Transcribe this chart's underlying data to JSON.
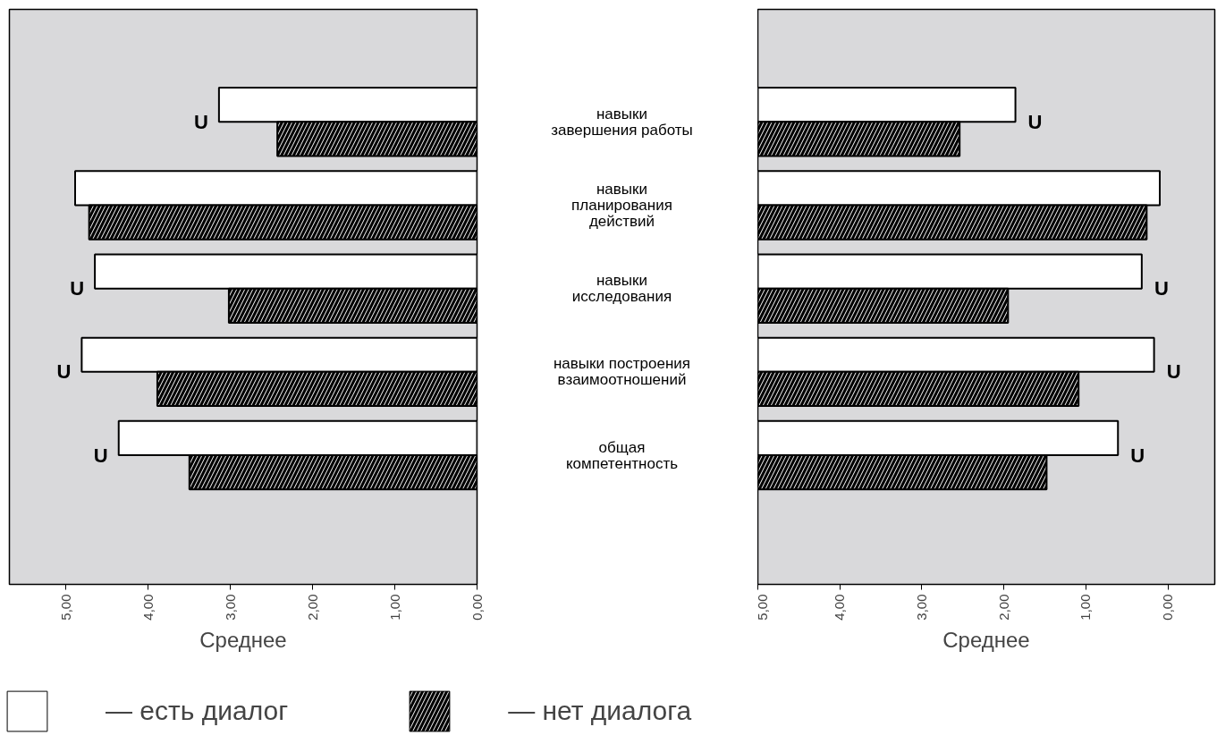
{
  "chart_data": [
    {
      "type": "bar",
      "orientation": "horizontal",
      "categories": [
        "навыки\nзавершения работы",
        "навыки\nпланирования\nдействий",
        "навыки\nисследования",
        "навыки построения\nвзаимоотношений",
        "общая\nкомпетентность"
      ],
      "xlabel": "Среднее",
      "xlim": [
        5.69,
        0
      ],
      "xticks": [
        {
          "value": 5,
          "label": "5,00"
        },
        {
          "value": 4,
          "label": "4,00"
        },
        {
          "value": 3,
          "label": "3,00"
        },
        {
          "value": 2,
          "label": "2,00"
        },
        {
          "value": 1,
          "label": "1,00"
        },
        {
          "value": 0,
          "label": "0,00"
        }
      ],
      "legend": "bottom",
      "series": [
        {
          "name": "— есть диалог",
          "color": "#ffffff",
          "values": [
            3.14,
            4.89,
            4.65,
            4.81,
            4.36
          ]
        },
        {
          "name": "— нет диалога",
          "color": "#000000",
          "values": [
            2.43,
            4.72,
            3.02,
            3.89,
            3.5
          ]
        }
      ],
      "annotations": [
        {
          "text": "U",
          "x": 3.14,
          "y": "навыки\nзавершения работы"
        },
        {
          "text": "U",
          "x": 4.65,
          "y": "навыки\nисследования"
        },
        {
          "text": "U",
          "x": 4.81,
          "y": "навыки построения\nвзаимоотношений"
        },
        {
          "text": "U",
          "x": 4.36,
          "y": "общая\nкомпетентность"
        }
      ]
    },
    {
      "type": "bar",
      "orientation": "horizontal",
      "tick_labels": "x",
      "categories": [
        "навыки\nзавершения работы",
        "навыки\nпланирования\nдействий",
        "навыки\nисследования",
        "навыки построения\nвзаимоотношений",
        "общая\nкомпетентность"
      ],
      "xlabel": "Среднее",
      "xlim": [
        5,
        -0.57
      ],
      "xticks": [
        {
          "value": 5,
          "label": "5,00"
        },
        {
          "value": 4,
          "label": "4,00"
        },
        {
          "value": 3,
          "label": "3,00"
        },
        {
          "value": 2,
          "label": "2,00"
        },
        {
          "value": 1,
          "label": "1,00"
        },
        {
          "value": 0,
          "label": "0,00"
        }
      ],
      "series": [
        {
          "color": "#ffffff",
          "base": [
            5,
            5,
            5,
            5,
            5
          ],
          "values": [
            -3.14,
            -4.9,
            -4.68,
            -4.83,
            -4.39
          ]
        },
        {
          "color": "#000000",
          "base": [
            5,
            5,
            5,
            5,
            5
          ],
          "values": [
            -2.46,
            -4.74,
            -3.05,
            -3.91,
            -3.52
          ]
        }
      ],
      "annotations": [
        {
          "text": "U",
          "x": 1.86,
          "y": "навыки\nзавершения работы"
        },
        {
          "text": "U",
          "x": 0.32,
          "y": "навыки\nисследования"
        },
        {
          "text": "U",
          "x": 0.17,
          "y": "навыки построения\nвзаимоотношений"
        },
        {
          "text": "U",
          "x": 0.61,
          "y": "общая\nкомпетентность"
        }
      ]
    }
  ]
}
